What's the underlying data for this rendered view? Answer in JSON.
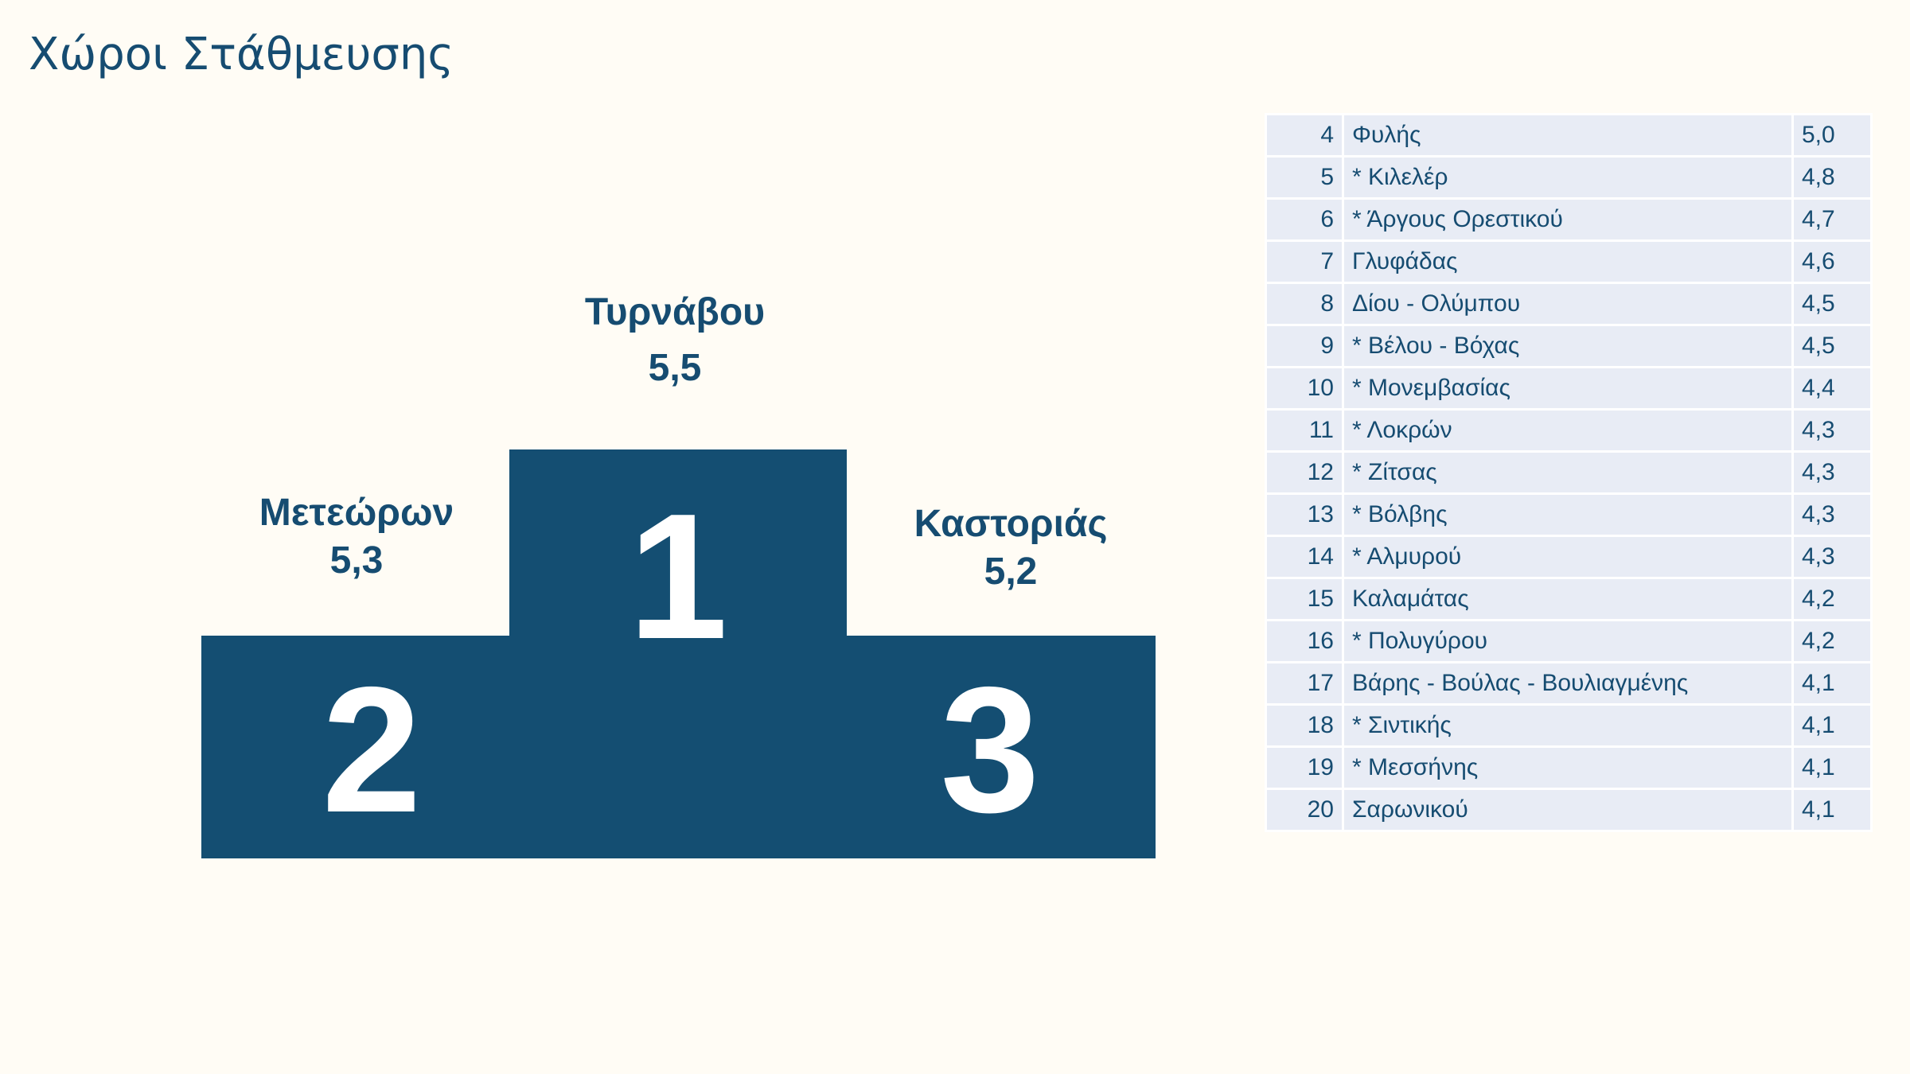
{
  "title": "Χώροι Στάθμευσης",
  "colors": {
    "accent": "#144e72",
    "background": "#fffcf5",
    "table_row": "#e8ecf5"
  },
  "podium": {
    "first": {
      "rank": "1",
      "name": "Τυρνάβου",
      "value": "5,5"
    },
    "second": {
      "rank": "2",
      "name": "Μετεώρων",
      "value": "5,3"
    },
    "third": {
      "rank": "3",
      "name": "Καστοριάς",
      "value": "5,2"
    }
  },
  "ranking": [
    {
      "rank": "4",
      "name": "Φυλής",
      "value": "5,0"
    },
    {
      "rank": "5",
      "name": "* Κιλελέρ",
      "value": "4,8"
    },
    {
      "rank": "6",
      "name": "* Άργους Ορεστικού",
      "value": "4,7"
    },
    {
      "rank": "7",
      "name": "Γλυφάδας",
      "value": "4,6"
    },
    {
      "rank": "8",
      "name": "Δίου - Ολύμπου",
      "value": "4,5"
    },
    {
      "rank": "9",
      "name": "* Βέλου - Βόχας",
      "value": "4,5"
    },
    {
      "rank": "10",
      "name": "* Μονεμβασίας",
      "value": "4,4"
    },
    {
      "rank": "11",
      "name": "* Λοκρών",
      "value": "4,3"
    },
    {
      "rank": "12",
      "name": "* Ζίτσας",
      "value": "4,3"
    },
    {
      "rank": "13",
      "name": "* Βόλβης",
      "value": "4,3"
    },
    {
      "rank": "14",
      "name": "* Αλμυρού",
      "value": "4,3"
    },
    {
      "rank": "15",
      "name": "Καλαμάτας",
      "value": "4,2"
    },
    {
      "rank": "16",
      "name": "* Πολυγύρου",
      "value": "4,2"
    },
    {
      "rank": "17",
      "name": "Βάρης - Βούλας - Βουλιαγμένης",
      "value": "4,1"
    },
    {
      "rank": "18",
      "name": "* Σιντικής",
      "value": "4,1"
    },
    {
      "rank": "19",
      "name": "* Μεσσήνης",
      "value": "4,1"
    },
    {
      "rank": "20",
      "name": "Σαρωνικού",
      "value": "4,1"
    }
  ]
}
